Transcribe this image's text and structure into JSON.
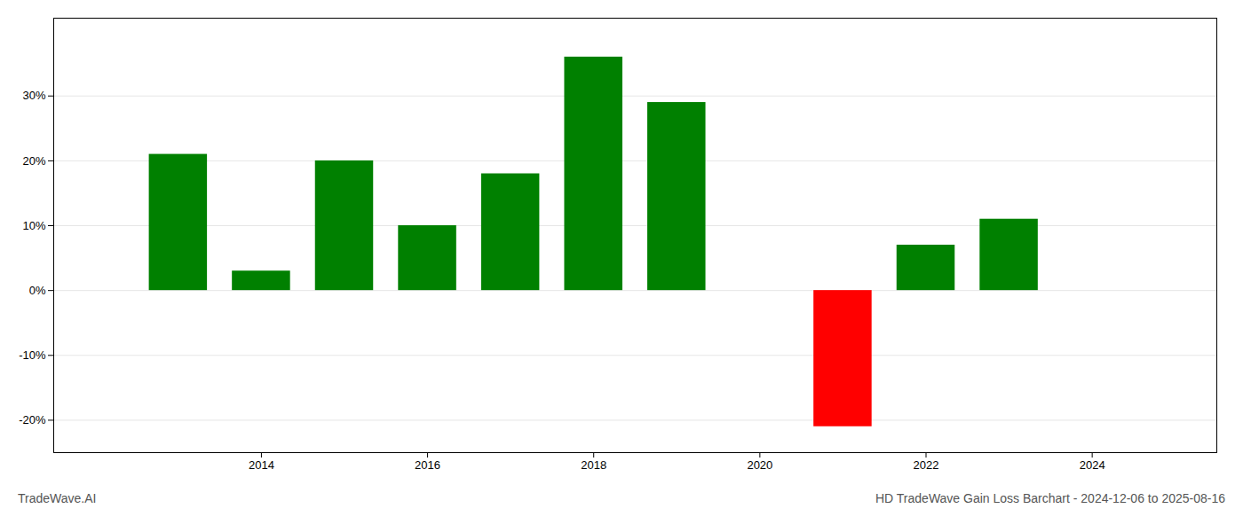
{
  "chart_data": {
    "type": "bar",
    "title": "HD TradeWave Gain Loss Barchart - 2024-12-06 to 2025-08-16",
    "annotations": [
      {
        "text": "TradeWave.AI"
      }
    ],
    "x": [
      2013,
      2014,
      2015,
      2016,
      2017,
      2018,
      2019,
      2021,
      2022,
      2023
    ],
    "values": [
      21.0,
      3.0,
      20.0,
      10.0,
      18.0,
      36.0,
      29.0,
      -21.0,
      7.0,
      11.0
    ],
    "colors": [
      "#008000",
      "#008000",
      "#008000",
      "#008000",
      "#008000",
      "#008000",
      "#008000",
      "#ff0000",
      "#008000",
      "#008000"
    ],
    "xlim": [
      2011.5,
      2025.5
    ],
    "ylim": [
      -25,
      42
    ],
    "xticks": [
      2014,
      2016,
      2018,
      2020,
      2022,
      2024
    ],
    "yticks": [
      {
        "value": -20,
        "label": "-20%"
      },
      {
        "value": -10,
        "label": "-10%"
      },
      {
        "value": 0,
        "label": "0%"
      },
      {
        "value": 10,
        "label": "10%"
      },
      {
        "value": 20,
        "label": "20%"
      },
      {
        "value": 30,
        "label": "30%"
      }
    ],
    "grid": true
  }
}
